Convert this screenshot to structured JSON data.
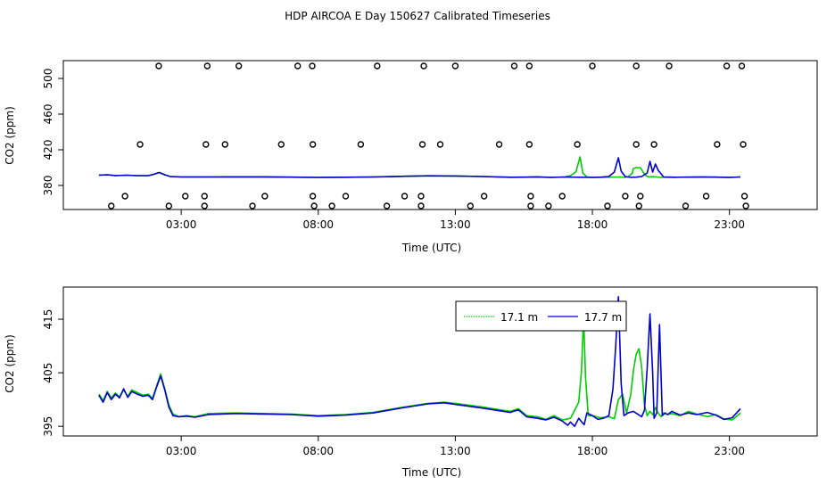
{
  "title": "HDP AIRCOA E  Day 150627  Calibrated Timeseries",
  "colors": {
    "green": "#00cc00",
    "blue": "#0000cc",
    "axis": "#000000"
  },
  "chart_data": [
    {
      "type": "scatter",
      "name": "top",
      "title": "HDP AIRCOA E  Day 150627  Calibrated Timeseries",
      "xlabel": "Time (UTC)",
      "ylabel": "CO2 (ppm)",
      "xlim": [
        -1.3,
        26.2
      ],
      "ylim": [
        353,
        520
      ],
      "xticks": [
        3,
        8,
        13,
        18,
        23
      ],
      "xtick_labels": [
        "03:00",
        "08:00",
        "13:00",
        "18:00",
        "23:00"
      ],
      "yticks": [
        380,
        420,
        460,
        500
      ],
      "ytick_labels": [
        "380",
        "420",
        "460",
        "500"
      ],
      "points": [
        [
          2.18,
          514
        ],
        [
          3.95,
          514
        ],
        [
          5.1,
          514
        ],
        [
          7.25,
          514
        ],
        [
          7.78,
          514
        ],
        [
          10.15,
          514
        ],
        [
          11.85,
          514
        ],
        [
          13.0,
          514
        ],
        [
          15.15,
          514
        ],
        [
          15.7,
          514
        ],
        [
          18.0,
          514
        ],
        [
          19.6,
          514
        ],
        [
          20.8,
          514
        ],
        [
          22.9,
          514
        ],
        [
          23.45,
          514
        ],
        [
          1.5,
          426
        ],
        [
          3.9,
          426
        ],
        [
          4.6,
          426
        ],
        [
          6.65,
          426
        ],
        [
          7.8,
          426
        ],
        [
          9.55,
          426
        ],
        [
          11.8,
          426
        ],
        [
          12.45,
          426
        ],
        [
          14.6,
          426
        ],
        [
          15.7,
          426
        ],
        [
          17.45,
          426
        ],
        [
          19.6,
          426
        ],
        [
          20.25,
          426
        ],
        [
          22.55,
          426
        ],
        [
          23.5,
          426
        ],
        [
          0.95,
          368
        ],
        [
          3.15,
          368
        ],
        [
          3.85,
          368
        ],
        [
          6.05,
          368
        ],
        [
          7.8,
          368
        ],
        [
          9.0,
          368
        ],
        [
          11.15,
          368
        ],
        [
          11.75,
          368
        ],
        [
          14.05,
          368
        ],
        [
          15.75,
          368
        ],
        [
          16.9,
          368
        ],
        [
          19.2,
          368
        ],
        [
          19.75,
          368
        ],
        [
          22.15,
          368
        ],
        [
          23.55,
          368
        ],
        [
          0.45,
          357
        ],
        [
          2.55,
          357
        ],
        [
          3.85,
          357
        ],
        [
          5.6,
          357
        ],
        [
          7.85,
          357
        ],
        [
          8.5,
          357
        ],
        [
          10.5,
          357
        ],
        [
          11.75,
          357
        ],
        [
          13.55,
          357
        ],
        [
          15.75,
          357
        ],
        [
          16.4,
          357
        ],
        [
          18.55,
          357
        ],
        [
          19.7,
          357
        ],
        [
          21.4,
          357
        ],
        [
          23.6,
          357
        ]
      ],
      "series": [
        {
          "name": "17.1 m",
          "color": "#00cc00",
          "x": [
            0,
            0.3,
            0.6,
            1,
            1.4,
            1.8,
            2.0,
            2.2,
            2.4,
            2.6,
            3.0,
            4,
            5,
            6,
            7,
            8,
            9,
            10,
            11,
            12,
            13,
            14,
            15,
            15.6,
            16,
            16.5,
            17,
            17.2,
            17.4,
            17.55,
            17.65,
            17.8,
            18,
            18.5,
            19,
            19.2,
            19.3,
            19.45,
            19.5,
            19.6,
            19.75,
            19.85,
            19.95,
            20.05,
            20.2,
            20.35,
            20.5,
            20.7,
            21,
            21.5,
            22,
            22.5,
            23,
            23.4
          ],
          "values": [
            391.5,
            392,
            391,
            391.5,
            391,
            391,
            392.5,
            394.5,
            392,
            390,
            389.5,
            389.5,
            389.6,
            389.6,
            389.3,
            389,
            389.2,
            389.5,
            390.2,
            390.8,
            390.6,
            390,
            389.2,
            389.3,
            389.6,
            389,
            389.5,
            391,
            395.2,
            412,
            394,
            389.5,
            389,
            389.2,
            389.5,
            389,
            389.6,
            393.5,
            399,
            400,
            400,
            395,
            391,
            389.5,
            390,
            389.5,
            389,
            389.3,
            389.2,
            389.3,
            389.4,
            389.3,
            389,
            389.5
          ]
        },
        {
          "name": "17.7 m",
          "color": "#0000cc",
          "x": [
            0,
            0.3,
            0.6,
            1,
            1.4,
            1.8,
            2.0,
            2.2,
            2.4,
            2.6,
            3.0,
            4,
            5,
            6,
            7,
            8,
            9,
            10,
            11,
            12,
            13,
            14,
            15,
            15.6,
            16,
            16.5,
            17,
            17.5,
            18,
            18.3,
            18.6,
            18.8,
            18.95,
            19.05,
            19.2,
            19.4,
            19.6,
            19.8,
            20.0,
            20.1,
            20.2,
            20.3,
            20.4,
            20.6,
            20.8,
            21,
            21.5,
            22,
            22.5,
            23,
            23.4
          ],
          "values": [
            391.5,
            392,
            391,
            391.5,
            391,
            391,
            392.5,
            394.5,
            392,
            390,
            389.5,
            389.5,
            389.6,
            389.6,
            389.3,
            389,
            389.2,
            389.5,
            390.2,
            390.8,
            390.6,
            390,
            389.2,
            389.3,
            389.6,
            389,
            389.5,
            389.2,
            389,
            389.3,
            390,
            395,
            411,
            396,
            390,
            389,
            389.3,
            390,
            394,
            407,
            395,
            404,
            397,
            389.5,
            389.3,
            389.2,
            389.3,
            389.4,
            389.3,
            389,
            389.5
          ]
        }
      ]
    },
    {
      "type": "line",
      "name": "bottom",
      "xlabel": "Time (UTC)",
      "ylabel": "CO2 (ppm)",
      "xlim": [
        -1.3,
        26.2
      ],
      "ylim": [
        393.2,
        421
      ],
      "xticks": [
        3,
        8,
        13,
        18,
        23
      ],
      "xtick_labels": [
        "03:00",
        "08:00",
        "13:00",
        "18:00",
        "23:00"
      ],
      "yticks": [
        395,
        405,
        415
      ],
      "ytick_labels": [
        "395",
        "405",
        "415"
      ],
      "legend": {
        "position": "top-right",
        "entries": [
          "17.1 m",
          "17.7 m"
        ]
      },
      "series": [
        {
          "name": "17.1 m",
          "color": "#00cc00",
          "x": [
            0,
            0.15,
            0.3,
            0.45,
            0.6,
            0.75,
            0.9,
            1.05,
            1.2,
            1.4,
            1.6,
            1.8,
            1.95,
            2.1,
            2.25,
            2.4,
            2.55,
            2.7,
            2.9,
            3.2,
            3.5,
            4,
            5,
            6,
            7,
            8,
            9,
            10,
            11,
            12,
            12.6,
            13,
            14,
            15,
            15.3,
            15.6,
            16,
            16.3,
            16.6,
            16.9,
            17.2,
            17.35,
            17.5,
            17.6,
            17.68,
            17.75,
            17.85,
            18,
            18.3,
            18.6,
            18.8,
            18.95,
            19.1,
            19.25,
            19.4,
            19.5,
            19.6,
            19.7,
            19.8,
            19.9,
            20.0,
            20.1,
            20.2,
            20.3,
            20.4,
            20.5,
            20.6,
            20.75,
            20.9,
            21.2,
            21.5,
            21.8,
            22.2,
            22.5,
            22.8,
            23.1,
            23.4
          ],
          "values": [
            401,
            399.8,
            401.5,
            400.3,
            401.2,
            400.5,
            401.8,
            400.6,
            401.8,
            401.3,
            400.8,
            401,
            400.2,
            402.5,
            404.8,
            402,
            399,
            397.3,
            396.8,
            397,
            396.8,
            397.4,
            397.5,
            397.4,
            397.3,
            397,
            397.2,
            397.6,
            398.5,
            399.3,
            399.5,
            399.3,
            398.6,
            397.8,
            398.3,
            397,
            396.8,
            396.3,
            397,
            396.2,
            396.5,
            398,
            399.5,
            405,
            415.5,
            404,
            397,
            397,
            396.6,
            396.8,
            396.4,
            400,
            401,
            397.5,
            401,
            405.5,
            408.5,
            409.5,
            406,
            399,
            397,
            397.8,
            397.2,
            398.5,
            397.5,
            396.8,
            397.5,
            397.2,
            397.4,
            397,
            397.8,
            397.3,
            396.8,
            397.2,
            396.4,
            396.2,
            397.5
          ]
        },
        {
          "name": "17.7 m",
          "color": "#0000cc",
          "x": [
            0,
            0.15,
            0.3,
            0.45,
            0.6,
            0.75,
            0.9,
            1.05,
            1.2,
            1.4,
            1.6,
            1.8,
            1.95,
            2.1,
            2.25,
            2.4,
            2.55,
            2.7,
            2.9,
            3.2,
            3.5,
            4,
            5,
            6,
            7,
            8,
            9,
            10,
            11,
            12,
            12.6,
            13,
            14,
            15,
            15.3,
            15.6,
            16,
            16.3,
            16.6,
            16.9,
            17.1,
            17.2,
            17.35,
            17.5,
            17.7,
            17.8,
            18.0,
            18.2,
            18.4,
            18.6,
            18.75,
            18.85,
            18.95,
            19.05,
            19.15,
            19.3,
            19.5,
            19.65,
            19.8,
            19.9,
            20.0,
            20.1,
            20.2,
            20.25,
            20.35,
            20.45,
            20.55,
            20.65,
            20.75,
            20.9,
            21.2,
            21.5,
            21.8,
            22.2,
            22.5,
            22.8,
            23.1,
            23.4
          ],
          "values": [
            400.8,
            399.5,
            401.3,
            400,
            401,
            400.3,
            402,
            400.4,
            401.5,
            401,
            400.6,
            400.8,
            400,
            402.3,
            404.4,
            401.8,
            398.6,
            397,
            396.8,
            396.9,
            396.7,
            397.2,
            397.4,
            397.3,
            397.2,
            396.9,
            397.1,
            397.5,
            398.4,
            399.2,
            399.4,
            399.1,
            398.4,
            397.6,
            398.1,
            396.8,
            396.5,
            396.2,
            396.7,
            396,
            395.2,
            395.8,
            395,
            396.5,
            395.3,
            397.5,
            397,
            396.3,
            396.5,
            397,
            402,
            410,
            419.2,
            403,
            397,
            397.5,
            397.8,
            397.3,
            396.8,
            398,
            406,
            416,
            405,
            396.5,
            397.5,
            414,
            397,
            397.5,
            397.2,
            397.8,
            397.1,
            397.5,
            397.2,
            397.6,
            397.1,
            396.3,
            396.6,
            398.3
          ]
        }
      ]
    }
  ]
}
